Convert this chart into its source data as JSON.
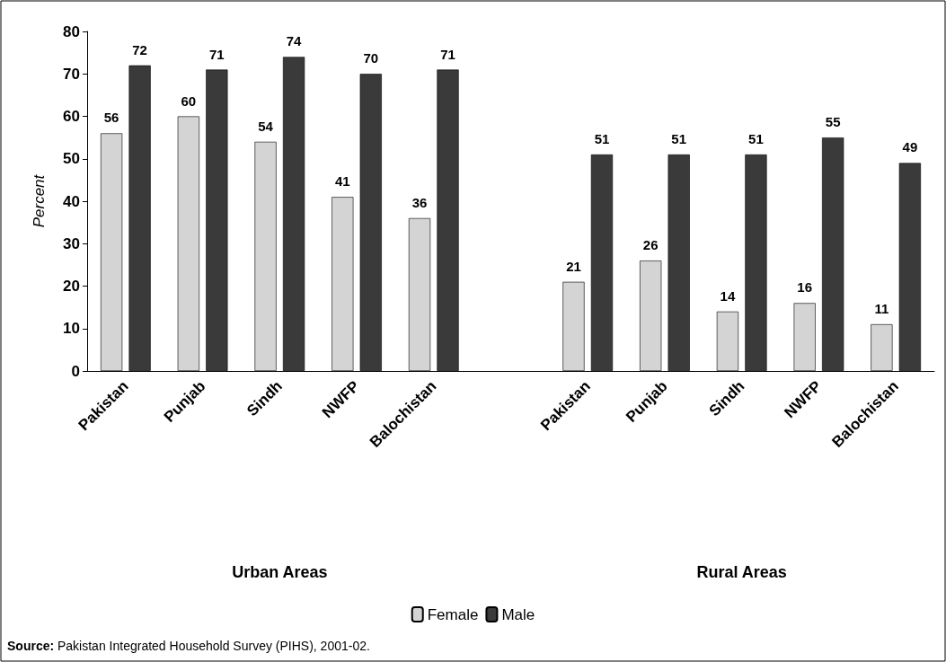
{
  "chart_data": {
    "type": "bar",
    "ylabel": "Percent",
    "categories": [
      "Pakistan",
      "Punjab",
      "Sindh",
      "NWFP",
      "Balochistan",
      null,
      "Pakistan",
      "Punjab",
      "Sindh",
      "NWFP",
      "Balochistan"
    ],
    "series": [
      {
        "name": "Female",
        "color": "#d4d4d4",
        "values": [
          56,
          60,
          54,
          41,
          36,
          null,
          21,
          26,
          14,
          16,
          11
        ]
      },
      {
        "name": "Male",
        "color": "#3a3a3a",
        "values": [
          72,
          71,
          74,
          70,
          71,
          null,
          51,
          51,
          51,
          55,
          49
        ]
      }
    ],
    "ylim": [
      0,
      80
    ],
    "yticks": [
      0,
      10,
      20,
      30,
      40,
      50,
      60,
      70,
      80
    ],
    "grid": false,
    "legend": "bottom",
    "data_labels": true,
    "annotations": [
      "Urban Areas",
      "Rural Areas",
      "Source: Pakistan Integrated Household Survey (PIHS), 2001-02."
    ]
  }
}
